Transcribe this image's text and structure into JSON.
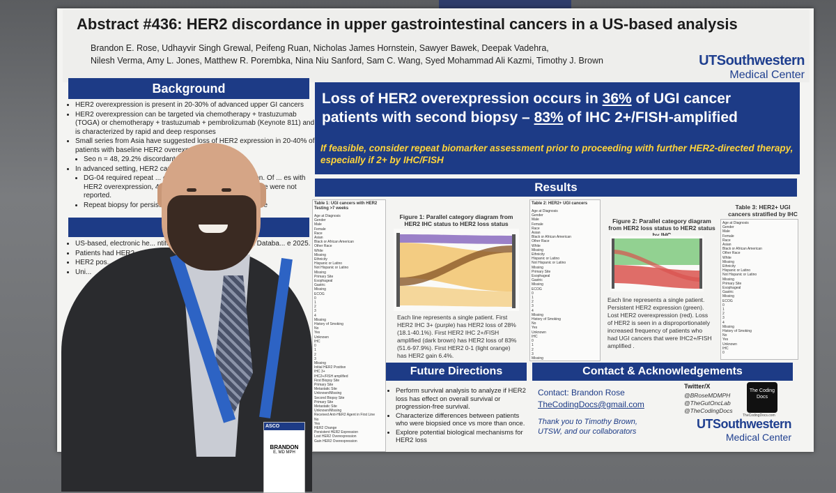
{
  "poster": {
    "title": "Abstract #436: HER2 discordance in upper gastrointestinal cancers in a US-based analysis",
    "authors_line1": "Brandon E. Rose, Udhayvir Singh Grewal, Peifeng Ruan, Nicholas James Hornstein, Sawyer Bawek, Deepak Vadehra,",
    "authors_line2": "Nilesh Verma, Amy L. Jones, Matthew R. Porembka, Nina Niu Sanford, Sam C. Wang, Syed Mohammad Ali Kazmi, Timothy J. Brown",
    "logo_ut": "UTSouthwestern",
    "logo_mc": "Medical Center"
  },
  "background": {
    "header": "Background",
    "bullets": [
      "HER2 overexpression is present in 20-30% of advanced upper GI cancers",
      "HER2 overexpression can be targeted via chemotherapy + trastuzumab (TOGA) or chemotherapy + trastuzumab + pembrolizumab (Keynote 811) and is characterized by rapid and deep responses",
      "Small series from Asia have suggested loss of HER2 expression in 20-40% of patients with baseline HER2 overexpr...",
      "Seo n = 48, 29.2% discordant ... 2.9% discordant",
      "In advanced setting, HER2 can... (DG-01, DG-04)",
      "DG-04 required repeat ... continued HER2 overexpression. Of ... es with HER2 overexpression, 450 faile... Reasons for tissue failure were not reported.",
      "Repeat biopsy for persis... yet accepted as standard of care"
    ]
  },
  "methods": {
    "header": "M",
    "bullets": [
      "US-based, electronic he... ntified Flatiron Health Research Databa... e 2025.",
      "Patients had HER2... erapy and a second as...",
      "HER2 pos...",
      "Uni..."
    ]
  },
  "key_finding": {
    "line1_pre": "Loss of HER2 overexpression occurs in ",
    "line1_pct": "36%",
    "line1_post": " of UGI cancer",
    "line2_pre": "patients with second biopsy – ",
    "line2_pct": "83%",
    "line2_post": " of IHC 2+/FISH-amplified",
    "sub": "If feasible, consider repeat biomarker assessment prior to proceeding with further HER2-directed therapy, especially if 2+ by IHC/FISH"
  },
  "results": {
    "header": "Results",
    "table1_title": "Table 1: UGI cancers with HER2 Testing >7 weeks",
    "table1_rows": [
      "Age at Diagnosis",
      "Gender",
      "Male",
      "Female",
      "Race",
      "Asian",
      "Black or African American",
      "Other Race",
      "White",
      "Missing",
      "Ethnicity",
      "Hispanic or Latino",
      "Not Hispanic or Latino",
      "Missing",
      "Primary Site",
      "Esophageal",
      "Gastric",
      "Missing",
      "ECOG",
      "0",
      "1",
      "2",
      "3",
      "4",
      "Missing",
      "History of Smoking",
      "No",
      "Yes",
      "Unknown",
      "IHC",
      "0",
      "1",
      "2",
      "3",
      "Missing",
      "Initial HER2 Positive",
      "IHC 3+",
      "IHC2+/FISH amplified",
      "First Biopsy Site",
      "Primary Site",
      "Metastatic Site",
      "Unknown/Missing",
      "Second Biopsy Site",
      "Primary Site",
      "Metastatic Site",
      "Unknown/Missing",
      "Received Anti-HER2 Agent in First Line",
      "No",
      "Yes",
      "HER2 Change",
      "Persistent HER2 Expression",
      "Lost HER2 Overexpression",
      "Gain HER2 Overexpression"
    ],
    "fig1_caption": "Figure 1: Parallel category diagram from HER2 IHC status to HER2 loss status",
    "fig1_text": "Each line represents a single patient. First HER2 IHC 3+ (purple) has HER2 loss of 28% (18.1-40.1%). First HER2 IHC 2+/FISH amplified (dark brown) has HER2 loss of 83% (51.6-97.9%). First HER2 0-1 (light orange) has HER2 gain 6.4%.",
    "table2_title": "Table 2: HER2+ UGI cancers",
    "fig2_caption": "Figure 2: Parallel category diagram from HER2 loss status to HER2 status by IHC",
    "fig2_text": "Each line represents a single patient. Persistent HER2 expression (green). Lost HER2 overexpression (red). Loss of HER2 is seen in a disproportionately increased frequency of patients who had UGI cancers that were IHC2+/FISH amplified .",
    "table3_title": "Table 3: HER2+ UGI cancers stratified by IHC"
  },
  "future": {
    "header": "Future Directions",
    "bullets": [
      "Perform survival analysis to analyze if HER2 loss has effect on overall survival or progression-free survival.",
      "Characterize differences between patients who were biopsied once vs more than once.",
      "Explore potential biological mechanisms for HER2 loss"
    ]
  },
  "contact": {
    "header": "Contact & Acknowledgements",
    "name": "Contact: Brandon Rose",
    "email": "TheCodingDocs@gmail.com",
    "twitter_label": "Twitter/X",
    "handles": [
      "@BRoseMDMPH",
      "@TheGutOncLab",
      "@TheCodingDocs"
    ],
    "thanks": "Thank you to Timothy Brown, UTSW, and our collaborators",
    "qr_text": "The Coding Docs",
    "qr_url": "TheCodingDocs.com",
    "logo_ut": "UTSouthwestern",
    "logo_mc": "Medical Center"
  },
  "badge": {
    "org": "ASCO",
    "name": "BRANDON",
    "line2": "E, MD MPH"
  },
  "colors": {
    "navy": "#1d3b86",
    "yellow": "#ffd43b",
    "purple": "#8a6bbf",
    "brown": "#8b5a2b",
    "orange": "#f2c774",
    "green": "#7fc97f",
    "red": "#d9534f"
  }
}
